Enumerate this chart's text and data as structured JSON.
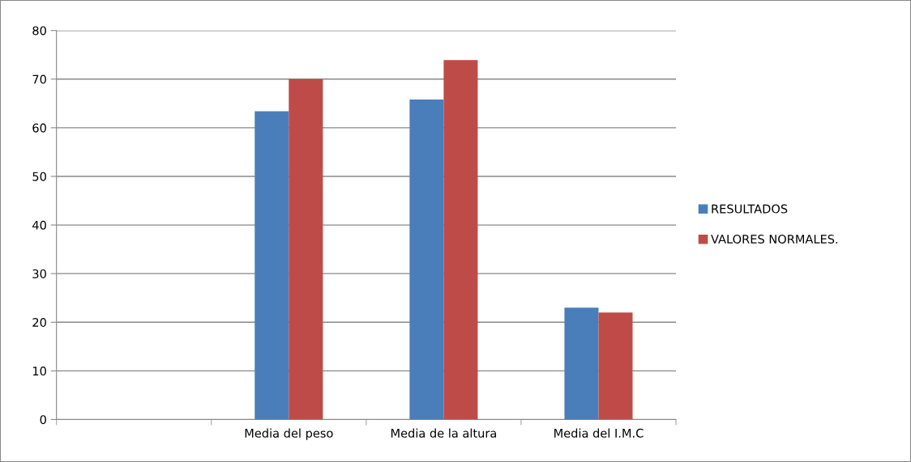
{
  "chart_data": {
    "type": "bar",
    "categories": [
      null,
      "Media del peso",
      "Media de la altura",
      "Media del I.M.C"
    ],
    "series": [
      {
        "name": "RESULTADOS",
        "color": "#4a7ebb",
        "values": [
          null,
          63.4,
          65.8,
          23
        ]
      },
      {
        "name": "VALORES NORMALES.",
        "color": "#be4b48",
        "values": [
          null,
          70,
          73.9,
          22
        ]
      }
    ],
    "ylim": [
      0,
      80
    ],
    "yticks": [
      0,
      10,
      20,
      30,
      40,
      50,
      60,
      70,
      80
    ],
    "grid": "y",
    "legend": "right"
  }
}
